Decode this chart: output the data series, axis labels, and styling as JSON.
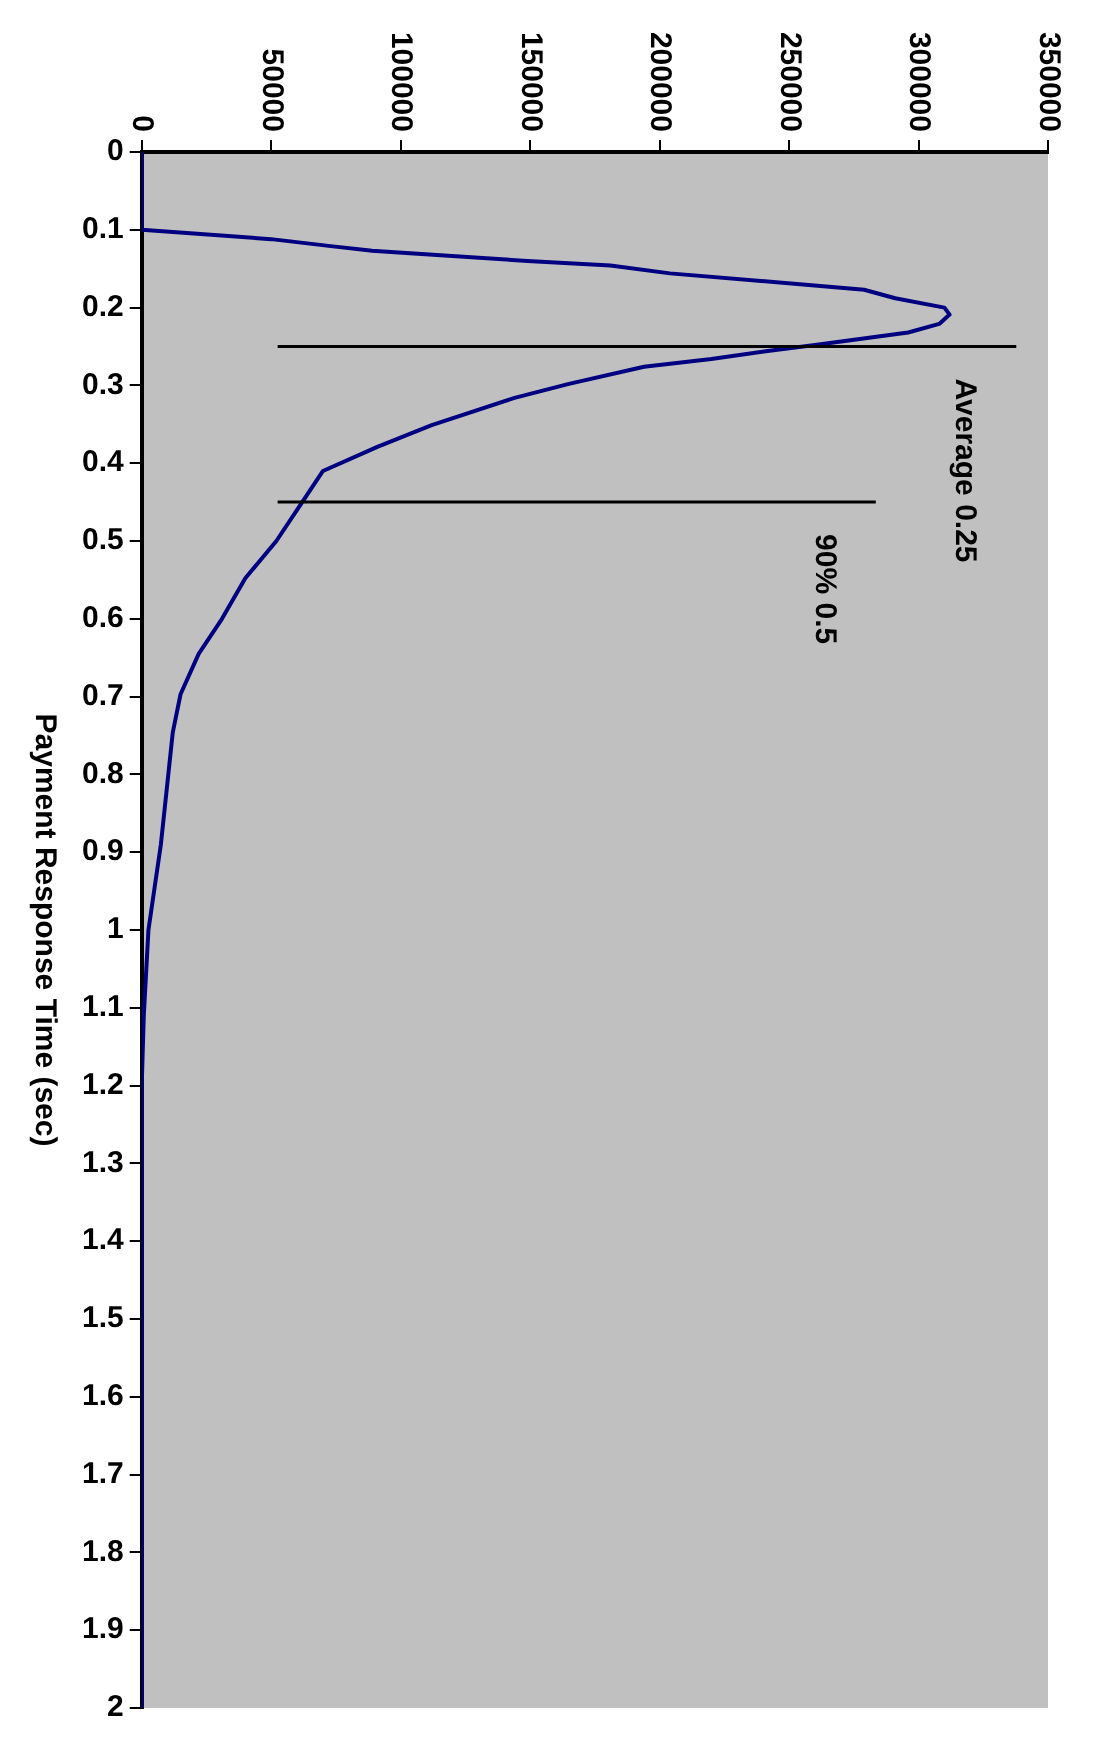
{
  "chart_data": {
    "type": "line",
    "ylabel": "Payment Response Time (sec)",
    "series": [
      {
        "color": "#000080",
        "x": [
          0,
          0,
          50000,
          73000,
          89000,
          149000,
          181000,
          204000,
          279000,
          291000,
          310000,
          312000,
          308000,
          296000,
          260000,
          241000,
          220000,
          194000,
          165000,
          144000,
          112000,
          91000,
          70000,
          52000,
          40000,
          31000,
          22000,
          15000,
          12000,
          7400,
          2600,
          800,
          0,
          0
        ],
        "values": [
          0,
          0.1,
          0.112,
          0.121,
          0.127,
          0.14,
          0.146,
          0.156,
          0.177,
          0.188,
          0.2,
          0.209,
          0.221,
          0.232,
          0.248,
          0.256,
          0.266,
          0.276,
          0.298,
          0.316,
          0.351,
          0.379,
          0.41,
          0.5,
          0.548,
          0.6,
          0.645,
          0.697,
          0.746,
          0.89,
          1.0,
          1.11,
          1.2,
          2
        ]
      }
    ],
    "ylim": [
      2,
      0
    ],
    "yticks": [
      0,
      0.1,
      0.2,
      0.3,
      0.4,
      0.5,
      0.6,
      0.7,
      0.8,
      0.9,
      1,
      1.1,
      1.2,
      1.3,
      1.4,
      1.5,
      1.6,
      1.7,
      1.8,
      1.9,
      2
    ],
    "xlim": [
      0,
      350000
    ],
    "xticks": [
      0,
      50000,
      100000,
      150000,
      200000,
      250000,
      300000,
      350000
    ],
    "ref_lines": [
      {
        "axis": "y",
        "value": 0.25,
        "label": "Average 0.25",
        "color": "#000000"
      },
      {
        "axis": "y",
        "value": 0.45,
        "label": "90% 0.5",
        "color": "#000000"
      }
    ],
    "grid": false,
    "legend": false,
    "marker": "none",
    "line_style": "solid"
  }
}
